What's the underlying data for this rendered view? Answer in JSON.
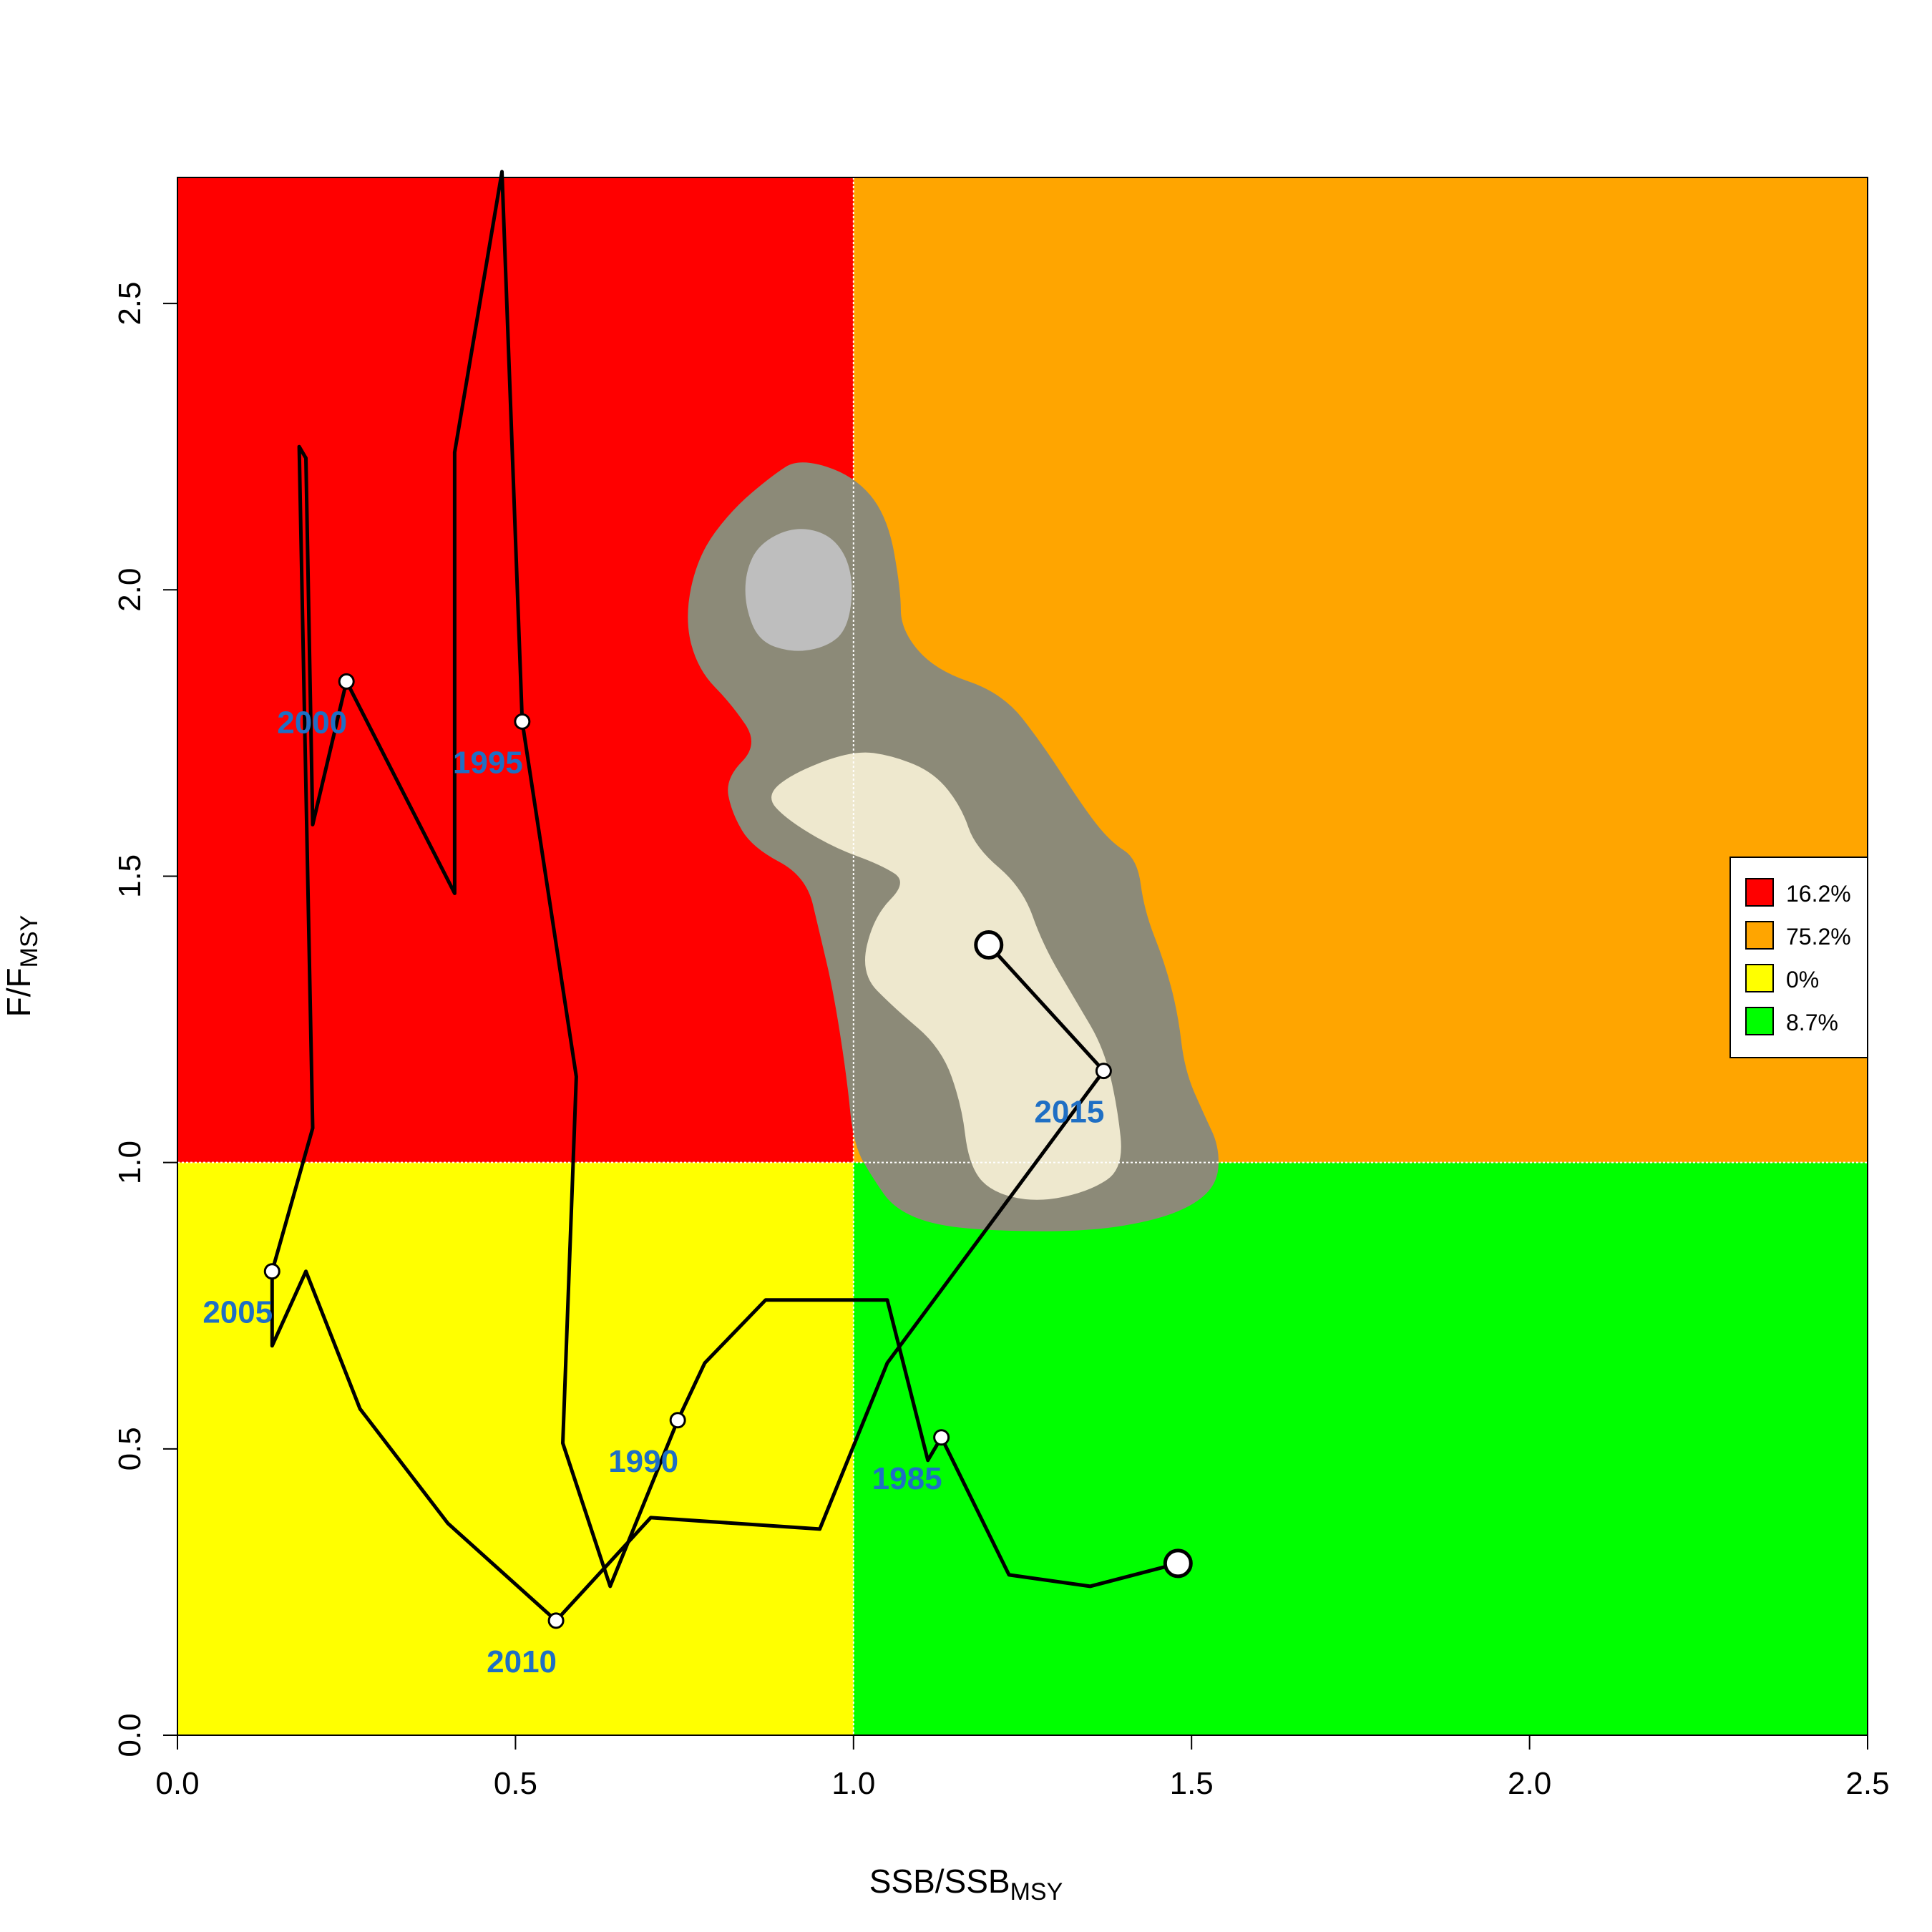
{
  "chart_data": {
    "type": "scatter",
    "subtype": "kobe_plot",
    "xlabel": {
      "main": "SSB/SSB",
      "sub": "MSY"
    },
    "ylabel": {
      "main": "F/F",
      "sub": "MSY"
    },
    "xlim": [
      0,
      2.5
    ],
    "ylim": [
      0,
      2.72
    ],
    "x_ticks": [
      0.0,
      0.5,
      1.0,
      1.5,
      2.0,
      2.5
    ],
    "x_tick_labels": [
      "0.0",
      "0.5",
      "1.0",
      "1.5",
      "2.0",
      "2.5"
    ],
    "y_ticks": [
      0.0,
      0.5,
      1.0,
      1.5,
      2.0,
      2.5
    ],
    "y_tick_labels": [
      "0.0",
      "0.5",
      "1.0",
      "1.5",
      "2.0",
      "2.5"
    ],
    "reference_lines": {
      "x": 1.0,
      "y": 1.0
    },
    "quadrants": [
      {
        "id": "overfished-overfishing",
        "x": [
          0,
          1
        ],
        "y": [
          1,
          2.72
        ],
        "color": "#FF0000"
      },
      {
        "id": "overfishing",
        "x": [
          1,
          2.5
        ],
        "y": [
          1,
          2.72
        ],
        "color": "#FFA500"
      },
      {
        "id": "overfished",
        "x": [
          0,
          1
        ],
        "y": [
          0,
          1
        ],
        "color": "#FFFF00"
      },
      {
        "id": "healthy",
        "x": [
          1,
          2.5
        ],
        "y": [
          0,
          1
        ],
        "color": "#00FF00"
      }
    ],
    "legend": {
      "position": "right",
      "entries": [
        {
          "label": "16.2%",
          "color": "#FF0000"
        },
        {
          "label": "75.2%",
          "color": "#FFA500"
        },
        {
          "label": "0%",
          "color": "#FFFF00"
        },
        {
          "label": "8.7%",
          "color": "#00FF00"
        }
      ]
    },
    "contours": [
      {
        "level": "outer",
        "color": "#8C8A78",
        "points": [
          [
            0.92,
            2.23
          ],
          [
            1.0,
            2.2
          ],
          [
            1.05,
            2.13
          ],
          [
            1.07,
            2.0
          ],
          [
            1.07,
            1.93
          ],
          [
            1.12,
            1.86
          ],
          [
            1.22,
            1.82
          ],
          [
            1.28,
            1.73
          ],
          [
            1.34,
            1.62
          ],
          [
            1.38,
            1.56
          ],
          [
            1.42,
            1.53
          ],
          [
            1.43,
            1.44
          ],
          [
            1.46,
            1.35
          ],
          [
            1.48,
            1.26
          ],
          [
            1.49,
            1.16
          ],
          [
            1.52,
            1.08
          ],
          [
            1.54,
            1.03
          ],
          [
            1.54,
            0.97
          ],
          [
            1.51,
            0.93
          ],
          [
            1.45,
            0.9
          ],
          [
            1.35,
            0.88
          ],
          [
            1.22,
            0.88
          ],
          [
            1.12,
            0.89
          ],
          [
            1.06,
            0.92
          ],
          [
            1.03,
            0.97
          ],
          [
            1.0,
            1.03
          ],
          [
            0.99,
            1.15
          ],
          [
            0.97,
            1.3
          ],
          [
            0.95,
            1.4
          ],
          [
            0.93,
            1.5
          ],
          [
            0.85,
            1.55
          ],
          [
            0.82,
            1.61
          ],
          [
            0.81,
            1.67
          ],
          [
            0.86,
            1.73
          ],
          [
            0.82,
            1.8
          ],
          [
            0.77,
            1.86
          ],
          [
            0.75,
            1.95
          ],
          [
            0.77,
            2.06
          ],
          [
            0.82,
            2.14
          ],
          [
            0.88,
            2.2
          ]
        ]
      },
      {
        "level": "inner-a",
        "color": "#EEE8CE",
        "points": [
          [
            1.0,
            1.72
          ],
          [
            1.06,
            1.71
          ],
          [
            1.12,
            1.68
          ],
          [
            1.16,
            1.62
          ],
          [
            1.18,
            1.55
          ],
          [
            1.25,
            1.48
          ],
          [
            1.28,
            1.38
          ],
          [
            1.33,
            1.28
          ],
          [
            1.37,
            1.2
          ],
          [
            1.39,
            1.1
          ],
          [
            1.4,
            0.99
          ],
          [
            1.35,
            0.95
          ],
          [
            1.27,
            0.93
          ],
          [
            1.2,
            0.95
          ],
          [
            1.17,
            1.0
          ],
          [
            1.16,
            1.1
          ],
          [
            1.13,
            1.2
          ],
          [
            1.06,
            1.27
          ],
          [
            1.01,
            1.33
          ],
          [
            1.03,
            1.43
          ],
          [
            1.08,
            1.49
          ],
          [
            1.04,
            1.52
          ],
          [
            0.97,
            1.55
          ],
          [
            0.9,
            1.6
          ],
          [
            0.87,
            1.64
          ],
          [
            0.91,
            1.68
          ]
        ]
      },
      {
        "level": "inner-b",
        "color": "#BEBEBE",
        "points": [
          [
            0.91,
            2.11
          ],
          [
            0.96,
            2.1
          ],
          [
            0.99,
            2.06
          ],
          [
            1.0,
            2.0
          ],
          [
            0.99,
            1.93
          ],
          [
            0.96,
            1.9
          ],
          [
            0.91,
            1.89
          ],
          [
            0.86,
            1.91
          ],
          [
            0.84,
            1.97
          ],
          [
            0.84,
            2.03
          ],
          [
            0.86,
            2.08
          ]
        ]
      }
    ],
    "series": [
      {
        "x": [
          1.13,
          1.11,
          1.05,
          0.96,
          0.87,
          0.78,
          0.74,
          0.64,
          0.57,
          0.59,
          0.51,
          0.48,
          0.41,
          0.41,
          0.25,
          0.2,
          0.19,
          0.18,
          0.2,
          0.14,
          0.14,
          0.19,
          0.27,
          0.4,
          0.56,
          0.7,
          0.95,
          1.05,
          1.37,
          1.2
        ],
        "y": [
          0.52,
          0.48,
          0.76,
          0.76,
          0.76,
          0.65,
          0.55,
          0.26,
          0.51,
          1.15,
          1.77,
          2.73,
          2.24,
          1.47,
          1.84,
          1.59,
          2.23,
          2.25,
          1.06,
          0.81,
          0.68,
          0.81,
          0.57,
          0.37,
          0.2,
          0.38,
          0.36,
          0.65,
          1.16,
          1.38
        ]
      },
      {
        "x": [
          1.13,
          1.23,
          1.35,
          1.48
        ],
        "y": [
          0.52,
          0.28,
          0.26,
          0.3
        ]
      }
    ],
    "labeled_points": [
      {
        "label": "1985",
        "x": 1.13,
        "y": 0.52
      },
      {
        "label": "1990",
        "x": 0.74,
        "y": 0.55
      },
      {
        "label": "1995",
        "x": 0.51,
        "y": 1.77
      },
      {
        "label": "2000",
        "x": 0.25,
        "y": 1.84
      },
      {
        "label": "2005",
        "x": 0.14,
        "y": 0.81
      },
      {
        "label": "2010",
        "x": 0.56,
        "y": 0.2
      },
      {
        "label": "2015",
        "x": 1.37,
        "y": 1.16
      }
    ],
    "highlighted_points": [
      {
        "x": 1.2,
        "y": 1.38
      },
      {
        "x": 1.48,
        "y": 0.3
      }
    ],
    "label_color": "#1F6FC4"
  }
}
